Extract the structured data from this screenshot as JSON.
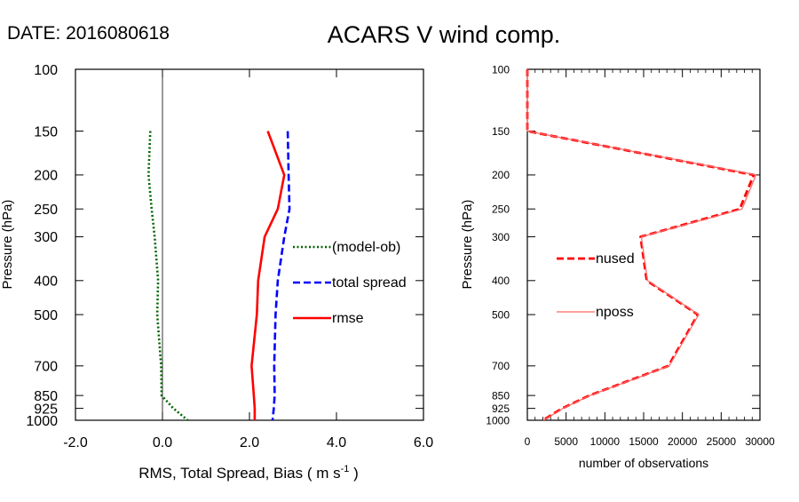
{
  "header": {
    "date_label": "DATE: 2016080618",
    "title": "ACARS V wind comp."
  },
  "chart_data": [
    {
      "type": "line",
      "panel": "left",
      "xlabel_main": "RMS, Total Spread, Bias ( m s",
      "xlabel_sup": "-1",
      "xlabel_end": " )",
      "ylabel": "Pressure (hPa)",
      "xlim": [
        -2.0,
        6.0
      ],
      "ylim": [
        1000,
        100
      ],
      "y_scale": "log",
      "x_ticks": [
        -2.0,
        0.0,
        2.0,
        4.0,
        6.0
      ],
      "x_tick_labels": [
        "-2.0",
        "0.0",
        "2.0",
        "4.0",
        "6.0"
      ],
      "y_ticks": [
        100,
        150,
        200,
        250,
        300,
        400,
        500,
        700,
        850,
        925,
        1000
      ],
      "y_tick_labels": [
        "100",
        "150",
        "200",
        "250",
        "300",
        "400",
        "500",
        "700",
        "850",
        "925",
        "1000"
      ],
      "zero_line": true,
      "legend_placement": "center-right",
      "series": [
        {
          "name": "(model-ob)",
          "color": "#006400",
          "style": "dotted",
          "pressure": [
            150,
            200,
            250,
            300,
            400,
            500,
            700,
            850,
            925,
            1000
          ],
          "values": [
            -0.28,
            -0.32,
            -0.25,
            -0.18,
            -0.1,
            -0.12,
            -0.03,
            -0.02,
            0.25,
            0.58
          ]
        },
        {
          "name": "total spread",
          "color": "#0000ff",
          "style": "dashed",
          "pressure": [
            150,
            200,
            250,
            300,
            400,
            500,
            700,
            850,
            925,
            1000
          ],
          "values": [
            2.88,
            2.9,
            2.92,
            2.8,
            2.65,
            2.6,
            2.57,
            2.58,
            2.56,
            2.53
          ]
        },
        {
          "name": "rmse",
          "color": "#ff0000",
          "style": "solid",
          "pressure": [
            150,
            200,
            250,
            300,
            400,
            500,
            700,
            850,
            925,
            1000
          ],
          "values": [
            2.42,
            2.8,
            2.65,
            2.35,
            2.2,
            2.17,
            2.05,
            2.1,
            2.12,
            2.12
          ]
        }
      ]
    },
    {
      "type": "line",
      "panel": "right",
      "xlabel": "number of observations",
      "ylabel": "Pressure (hPa)",
      "xlim": [
        0,
        30000
      ],
      "ylim": [
        1000,
        100
      ],
      "y_scale": "log",
      "x_ticks": [
        0,
        5000,
        10000,
        15000,
        20000,
        25000,
        30000
      ],
      "x_tick_labels": [
        "0",
        "5000",
        "10000",
        "15000",
        "20000",
        "25000",
        "30000"
      ],
      "y_ticks": [
        100,
        150,
        200,
        250,
        300,
        400,
        500,
        700,
        850,
        925,
        1000
      ],
      "y_tick_labels": [
        "100",
        "150",
        "200",
        "250",
        "300",
        "400",
        "500",
        "700",
        "850",
        "925",
        "1000"
      ],
      "legend_placement": "center-left",
      "series": [
        {
          "name": "nused",
          "color": "#ff0000",
          "style": "dashed",
          "pressure": [
            100,
            150,
            200,
            250,
            300,
            400,
            500,
            700,
            850,
            925,
            1000
          ],
          "values": [
            0,
            0,
            29200,
            27400,
            14600,
            15400,
            22000,
            18200,
            8000,
            4500,
            2000
          ]
        },
        {
          "name": "nposs",
          "color": "#ff6666",
          "style": "solid",
          "pressure": [
            100,
            150,
            200,
            250,
            300,
            400,
            500,
            700,
            850,
            925,
            1000
          ],
          "values": [
            0,
            0,
            29500,
            27700,
            14700,
            15500,
            22100,
            18300,
            8100,
            4600,
            2100
          ]
        }
      ]
    }
  ]
}
